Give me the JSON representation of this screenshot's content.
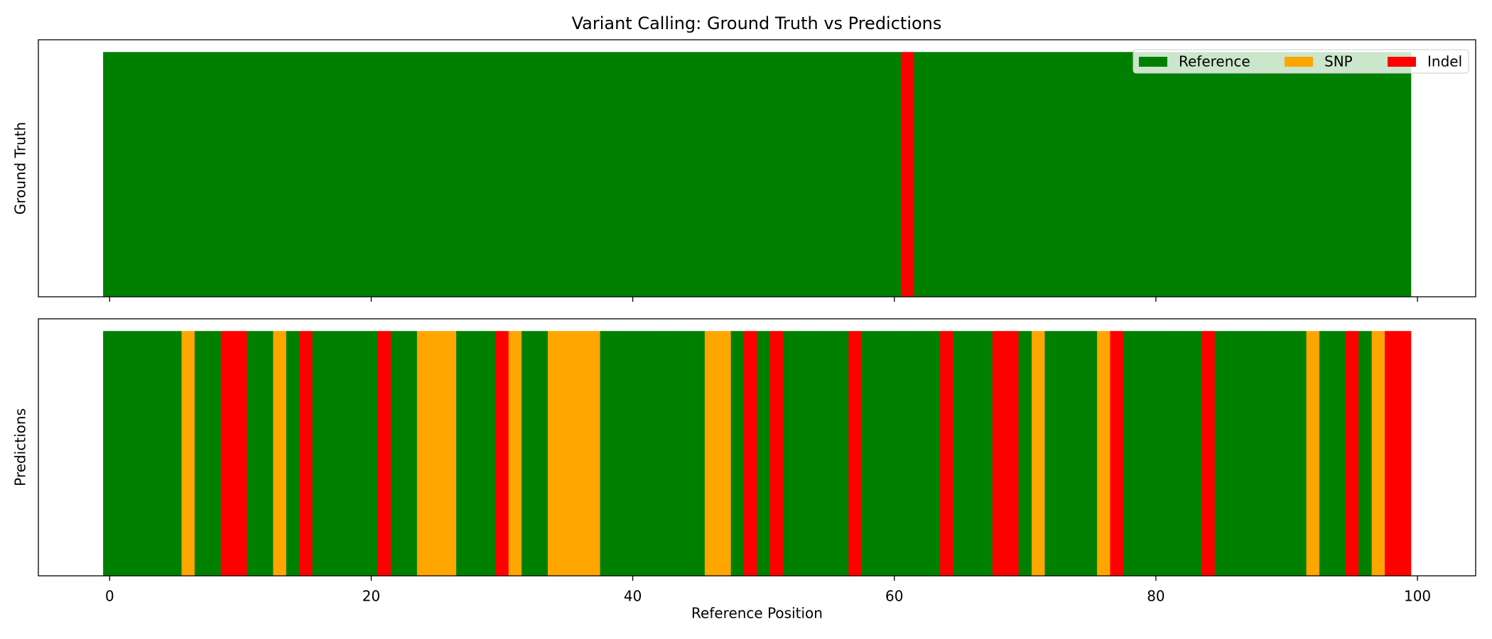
{
  "chart_data": [
    {
      "type": "bar",
      "title": "Variant Calling: Ground Truth vs Predictions",
      "y_label": "Ground Truth",
      "classes": [
        {
          "name": "Reference",
          "color": "green"
        },
        {
          "name": "SNP",
          "color": "orange"
        },
        {
          "name": "Indel",
          "color": "red"
        }
      ],
      "legend": "upper right",
      "x": [
        0,
        1,
        2,
        3,
        4,
        5,
        6,
        7,
        8,
        9,
        10,
        11,
        12,
        13,
        14,
        15,
        16,
        17,
        18,
        19,
        20,
        21,
        22,
        23,
        24,
        25,
        26,
        27,
        28,
        29,
        30,
        31,
        32,
        33,
        34,
        35,
        36,
        37,
        38,
        39,
        40,
        41,
        42,
        43,
        44,
        45,
        46,
        47,
        48,
        49,
        50,
        51,
        52,
        53,
        54,
        55,
        56,
        57,
        58,
        59,
        60,
        61,
        62,
        63,
        64,
        65,
        66,
        67,
        68,
        69,
        70,
        71,
        72,
        73,
        74,
        75,
        76,
        77,
        78,
        79,
        80,
        81,
        82,
        83,
        84,
        85,
        86,
        87,
        88,
        89,
        90,
        91,
        92,
        93,
        94,
        95,
        96,
        97,
        98,
        99
      ],
      "values": [
        0,
        0,
        0,
        0,
        0,
        0,
        0,
        0,
        0,
        0,
        0,
        0,
        0,
        0,
        0,
        0,
        0,
        0,
        0,
        0,
        0,
        0,
        0,
        0,
        0,
        0,
        0,
        0,
        0,
        0,
        0,
        0,
        0,
        0,
        0,
        0,
        0,
        0,
        0,
        0,
        0,
        0,
        0,
        0,
        0,
        0,
        0,
        0,
        0,
        0,
        0,
        0,
        0,
        0,
        0,
        0,
        0,
        0,
        0,
        0,
        0,
        2,
        0,
        0,
        0,
        0,
        0,
        0,
        0,
        0,
        0,
        0,
        0,
        0,
        0,
        0,
        0,
        0,
        0,
        0,
        0,
        0,
        0,
        0,
        0,
        0,
        0,
        0,
        0,
        0,
        0,
        0,
        0,
        0,
        0,
        0,
        0,
        0,
        0,
        0
      ],
      "xlim": [
        -5.45,
        104.45
      ],
      "xticks": [
        0,
        20,
        40,
        60,
        80,
        100
      ]
    },
    {
      "type": "bar",
      "y_label": "Predictions",
      "x_label": "Reference Position",
      "x": [
        0,
        1,
        2,
        3,
        4,
        5,
        6,
        7,
        8,
        9,
        10,
        11,
        12,
        13,
        14,
        15,
        16,
        17,
        18,
        19,
        20,
        21,
        22,
        23,
        24,
        25,
        26,
        27,
        28,
        29,
        30,
        31,
        32,
        33,
        34,
        35,
        36,
        37,
        38,
        39,
        40,
        41,
        42,
        43,
        44,
        45,
        46,
        47,
        48,
        49,
        50,
        51,
        52,
        53,
        54,
        55,
        56,
        57,
        58,
        59,
        60,
        61,
        62,
        63,
        64,
        65,
        66,
        67,
        68,
        69,
        70,
        71,
        72,
        73,
        74,
        75,
        76,
        77,
        78,
        79,
        80,
        81,
        82,
        83,
        84,
        85,
        86,
        87,
        88,
        89,
        90,
        91,
        92,
        93,
        94,
        95,
        96,
        97,
        98,
        99
      ],
      "values": [
        0,
        0,
        0,
        0,
        0,
        0,
        1,
        0,
        0,
        2,
        2,
        0,
        0,
        1,
        0,
        2,
        0,
        0,
        0,
        0,
        0,
        2,
        0,
        0,
        1,
        1,
        1,
        0,
        0,
        0,
        2,
        1,
        0,
        0,
        1,
        1,
        1,
        1,
        0,
        0,
        0,
        0,
        0,
        0,
        0,
        0,
        1,
        1,
        0,
        2,
        0,
        2,
        0,
        0,
        0,
        0,
        0,
        2,
        0,
        0,
        0,
        0,
        0,
        0,
        2,
        0,
        0,
        0,
        2,
        2,
        0,
        1,
        0,
        0,
        0,
        0,
        1,
        2,
        0,
        0,
        0,
        0,
        0,
        0,
        2,
        0,
        0,
        0,
        0,
        0,
        0,
        0,
        1,
        0,
        0,
        2,
        0,
        1,
        2,
        2
      ],
      "xlim": [
        -5.45,
        104.45
      ],
      "xticks": [
        0,
        20,
        40,
        60,
        80,
        100
      ]
    }
  ]
}
